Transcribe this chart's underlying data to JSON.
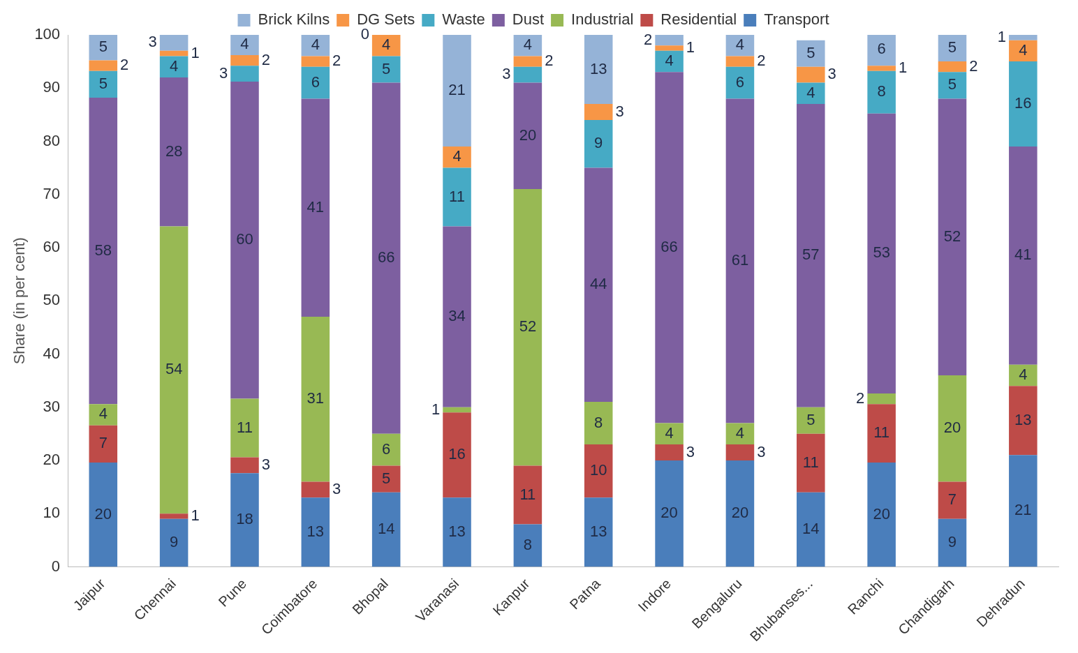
{
  "chart_data": {
    "type": "bar",
    "stacked": true,
    "ylabel": "Share (in per cent)",
    "categories": [
      "Jaipur",
      "Chennai",
      "Pune",
      "Coimbatore",
      "Bhopal",
      "Varanasi",
      "Kanpur",
      "Patna",
      "Indore",
      "Bengaluru",
      "Bhubanses...",
      "Ranchi",
      "Chandigarh",
      "Dehradun"
    ],
    "series": [
      {
        "name": "Transport",
        "color": "#4a7ebb",
        "values": [
          19.6,
          9,
          17.6,
          13,
          14,
          13,
          8,
          13,
          20,
          20,
          14,
          19.6,
          9,
          21
        ],
        "value_labels": [
          "20",
          "9",
          "18",
          "13",
          "14",
          "13",
          "8",
          "13",
          "20",
          "20",
          "14",
          "20",
          "9",
          "21"
        ]
      },
      {
        "name": "Residential",
        "color": "#be4b48",
        "values": [
          7,
          1,
          3,
          3,
          5,
          16,
          11,
          10,
          3,
          3,
          11,
          11,
          7,
          13
        ]
      },
      {
        "name": "Industrial",
        "color": "#98b954",
        "values": [
          4,
          54,
          11,
          31,
          6,
          1,
          52,
          8,
          4,
          4,
          5,
          2,
          20,
          4
        ]
      },
      {
        "name": "Dust",
        "color": "#7d5fa0",
        "values": [
          57.6,
          28,
          59.6,
          41,
          66,
          34,
          20,
          44,
          66,
          61,
          57,
          52.6,
          52,
          41
        ],
        "value_labels": [
          "58",
          "28",
          "60",
          "41",
          "66",
          "34",
          "20",
          "44",
          "66",
          "61",
          "57",
          "53",
          "52",
          "41"
        ]
      },
      {
        "name": "Waste",
        "color": "#46aac5",
        "values": [
          5,
          4,
          3,
          6,
          5,
          11,
          3,
          9,
          4,
          6,
          4,
          8,
          5,
          16
        ]
      },
      {
        "name": "DG Sets",
        "color": "#f79646",
        "values": [
          2,
          1,
          2,
          2,
          4,
          4,
          2,
          3,
          1,
          2,
          3,
          1,
          2,
          4
        ]
      },
      {
        "name": "Brick Kilns",
        "color": "#95b3d7",
        "values": [
          5,
          3,
          4,
          4,
          0,
          21,
          4,
          13,
          2,
          4,
          5,
          6,
          5,
          1
        ]
      }
    ],
    "ylim": [
      0,
      100
    ],
    "yticks": [
      0,
      10,
      20,
      30,
      40,
      50,
      60,
      70,
      80,
      90,
      100
    ],
    "grid": false,
    "legend": "top",
    "data_labels": true
  }
}
